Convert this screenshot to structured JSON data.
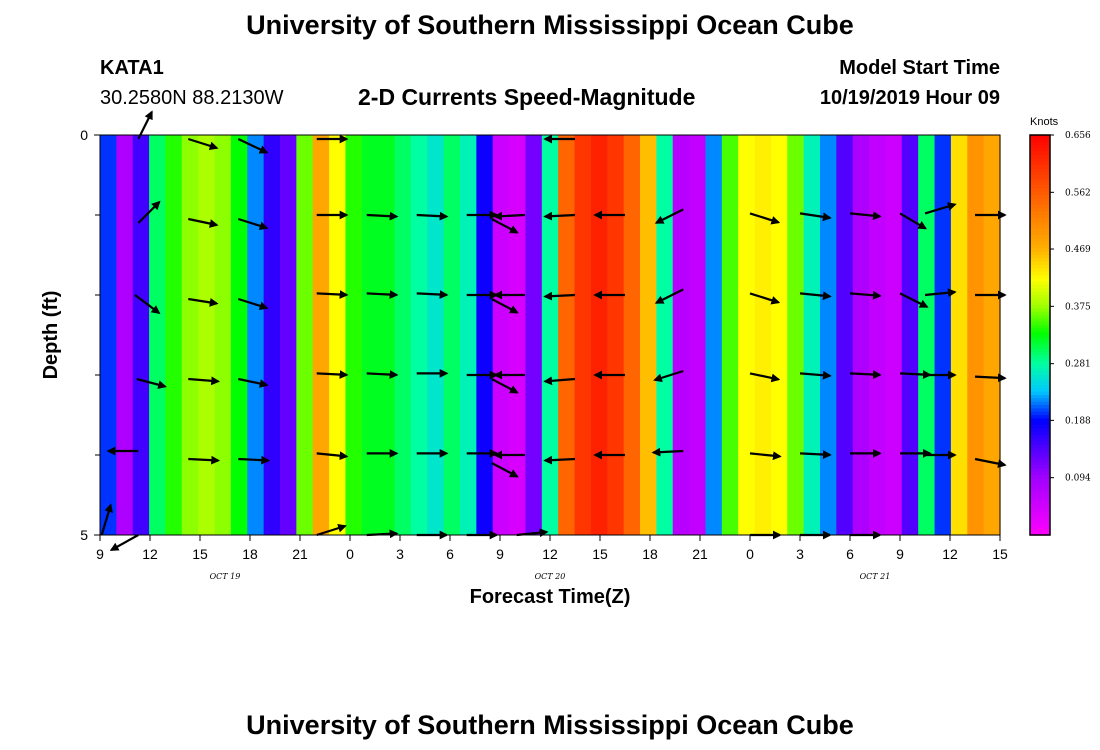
{
  "header": {
    "title": "University of Southern Mississippi Ocean Cube",
    "station": "KATA1",
    "coords": "30.2580N 88.2130W",
    "subtitle": "2-D Currents Speed-Magnitude",
    "model_label": "Model Start Time",
    "model_time": "10/19/2019 Hour 09"
  },
  "footer": {
    "title": "University of Southern Mississippi Ocean Cube"
  },
  "chart_data": {
    "type": "heatmap",
    "xlabel": "Forecast Time(Z)",
    "ylabel": "Depth (ft)",
    "x_range": [
      0,
      54
    ],
    "y_range": [
      0,
      5
    ],
    "x_ticks": [
      {
        "v": 0,
        "label": "9"
      },
      {
        "v": 3,
        "label": "12"
      },
      {
        "v": 6,
        "label": "15"
      },
      {
        "v": 9,
        "label": "18"
      },
      {
        "v": 12,
        "label": "21"
      },
      {
        "v": 15,
        "label": "0"
      },
      {
        "v": 18,
        "label": "3"
      },
      {
        "v": 21,
        "label": "6"
      },
      {
        "v": 24,
        "label": "9"
      },
      {
        "v": 27,
        "label": "12"
      },
      {
        "v": 30,
        "label": "15"
      },
      {
        "v": 33,
        "label": "18"
      },
      {
        "v": 36,
        "label": "21"
      },
      {
        "v": 39,
        "label": "0"
      },
      {
        "v": 42,
        "label": "3"
      },
      {
        "v": 45,
        "label": "6"
      },
      {
        "v": 48,
        "label": "9"
      },
      {
        "v": 51,
        "label": "12"
      },
      {
        "v": 54,
        "label": "15"
      }
    ],
    "date_labels": [
      {
        "v": 7.5,
        "label": "OCT 19"
      },
      {
        "v": 27,
        "label": "OCT 20"
      },
      {
        "v": 46.5,
        "label": "OCT 21"
      }
    ],
    "y_tick_labels": [
      {
        "v": 0,
        "label": "0"
      },
      {
        "v": 5,
        "label": "5"
      }
    ],
    "y_minor_ticks": [
      1,
      2,
      3,
      4
    ],
    "colorbar": {
      "unit": "Knots",
      "min": 0.0,
      "max": 0.656,
      "tick_labels": [
        "0.656",
        "0.562",
        "0.469",
        "0.375",
        "0.281",
        "0.188",
        "0.094"
      ],
      "tick_values": [
        0.656,
        0.562,
        0.469,
        0.375,
        0.281,
        0.188,
        0.094
      ]
    },
    "speed_by_hour": [
      0.2,
      0.08,
      0.15,
      0.3,
      0.34,
      0.37,
      0.38,
      0.37,
      0.33,
      0.22,
      0.16,
      0.13,
      0.36,
      0.48,
      0.42,
      0.34,
      0.32,
      0.32,
      0.3,
      0.28,
      0.26,
      0.3,
      0.27,
      0.18,
      0.05,
      0.04,
      0.12,
      0.28,
      0.55,
      0.6,
      0.62,
      0.6,
      0.55,
      0.46,
      0.28,
      0.07,
      0.06,
      0.22,
      0.35,
      0.42,
      0.43,
      0.42,
      0.36,
      0.27,
      0.22,
      0.14,
      0.08,
      0.06,
      0.05,
      0.14,
      0.3,
      0.2,
      0.44,
      0.5,
      0.48
    ],
    "vectors": [
      {
        "x": 2.3,
        "y": 0.05,
        "u": 0.45,
        "v": -0.9
      },
      {
        "x": 5.3,
        "y": 0.05,
        "u": 0.95,
        "v": 0.3
      },
      {
        "x": 8.3,
        "y": 0.05,
        "u": 0.95,
        "v": 0.45
      },
      {
        "x": 13.0,
        "y": 0.05,
        "u": 1.0,
        "v": 0.0
      },
      {
        "x": 28.5,
        "y": 0.05,
        "u": -1.0,
        "v": 0.0
      },
      {
        "x": 0.1,
        "y": 5.0,
        "u": 0.3,
        "v": -1.0
      },
      {
        "x": 2.3,
        "y": 5.0,
        "u": -0.9,
        "v": 0.5
      },
      {
        "x": 13.0,
        "y": 5.0,
        "u": 0.95,
        "v": -0.3
      },
      {
        "x": 16.0,
        "y": 5.0,
        "u": 1.0,
        "v": -0.05
      },
      {
        "x": 19.0,
        "y": 5.0,
        "u": 1.0,
        "v": 0.0
      },
      {
        "x": 22.0,
        "y": 5.0,
        "u": 1.0,
        "v": 0.0
      },
      {
        "x": 25.0,
        "y": 5.0,
        "u": 1.0,
        "v": -0.1
      },
      {
        "x": 39.0,
        "y": 5.0,
        "u": 1.0,
        "v": 0.0
      },
      {
        "x": 42.0,
        "y": 5.0,
        "u": 1.0,
        "v": 0.0
      },
      {
        "x": 45.0,
        "y": 5.0,
        "u": 1.0,
        "v": 0.0
      },
      {
        "x": 2.3,
        "y": 1.1,
        "u": 0.7,
        "v": -0.7
      },
      {
        "x": 2.1,
        "y": 2.0,
        "u": 0.8,
        "v": 0.6
      },
      {
        "x": 2.2,
        "y": 3.05,
        "u": 0.95,
        "v": 0.25
      },
      {
        "x": 2.3,
        "y": 3.95,
        "u": -1.0,
        "v": 0.0
      },
      {
        "x": 5.3,
        "y": 1.05,
        "u": 0.95,
        "v": 0.2
      },
      {
        "x": 5.3,
        "y": 2.05,
        "u": 0.95,
        "v": 0.15
      },
      {
        "x": 5.3,
        "y": 3.05,
        "u": 1.0,
        "v": 0.08
      },
      {
        "x": 5.3,
        "y": 4.05,
        "u": 1.0,
        "v": 0.05
      },
      {
        "x": 8.3,
        "y": 1.05,
        "u": 0.95,
        "v": 0.3
      },
      {
        "x": 8.3,
        "y": 2.05,
        "u": 0.95,
        "v": 0.3
      },
      {
        "x": 8.3,
        "y": 3.05,
        "u": 0.95,
        "v": 0.2
      },
      {
        "x": 8.3,
        "y": 4.05,
        "u": 1.0,
        "v": 0.05
      },
      {
        "x": 13.0,
        "y": 1.0,
        "u": 1.0,
        "v": 0.0
      },
      {
        "x": 13.0,
        "y": 1.98,
        "u": 1.0,
        "v": 0.05
      },
      {
        "x": 13.0,
        "y": 2.98,
        "u": 1.0,
        "v": 0.05
      },
      {
        "x": 13.0,
        "y": 3.98,
        "u": 1.0,
        "v": 0.1
      },
      {
        "x": 16.0,
        "y": 1.0,
        "u": 1.0,
        "v": 0.05
      },
      {
        "x": 16.0,
        "y": 1.98,
        "u": 1.0,
        "v": 0.05
      },
      {
        "x": 16.0,
        "y": 2.98,
        "u": 1.0,
        "v": 0.05
      },
      {
        "x": 16.0,
        "y": 3.98,
        "u": 1.0,
        "v": 0.0
      },
      {
        "x": 19.0,
        "y": 1.0,
        "u": 1.0,
        "v": 0.05
      },
      {
        "x": 19.0,
        "y": 1.98,
        "u": 1.0,
        "v": 0.05
      },
      {
        "x": 19.0,
        "y": 2.98,
        "u": 1.0,
        "v": 0.0
      },
      {
        "x": 19.0,
        "y": 3.98,
        "u": 1.0,
        "v": 0.0
      },
      {
        "x": 22.0,
        "y": 1.0,
        "u": 1.0,
        "v": 0.0
      },
      {
        "x": 22.0,
        "y": 2.0,
        "u": 1.0,
        "v": 0.0
      },
      {
        "x": 22.0,
        "y": 3.0,
        "u": 1.0,
        "v": 0.0
      },
      {
        "x": 22.0,
        "y": 3.98,
        "u": 1.0,
        "v": 0.0
      },
      {
        "x": 23.5,
        "y": 1.05,
        "u": 0.85,
        "v": 0.45
      },
      {
        "x": 23.5,
        "y": 2.05,
        "u": 0.85,
        "v": 0.45
      },
      {
        "x": 23.5,
        "y": 3.05,
        "u": 0.85,
        "v": 0.45
      },
      {
        "x": 23.5,
        "y": 4.1,
        "u": 0.85,
        "v": 0.45
      },
      {
        "x": 25.5,
        "y": 1.0,
        "u": -1.0,
        "v": 0.05
      },
      {
        "x": 25.5,
        "y": 2.0,
        "u": -1.0,
        "v": 0.0
      },
      {
        "x": 25.5,
        "y": 3.0,
        "u": -1.0,
        "v": 0.0
      },
      {
        "x": 25.5,
        "y": 4.0,
        "u": -1.0,
        "v": 0.0
      },
      {
        "x": 28.5,
        "y": 1.0,
        "u": -1.0,
        "v": 0.05
      },
      {
        "x": 28.5,
        "y": 2.0,
        "u": -1.0,
        "v": 0.05
      },
      {
        "x": 28.5,
        "y": 3.05,
        "u": -1.0,
        "v": 0.08
      },
      {
        "x": 28.5,
        "y": 4.05,
        "u": -1.0,
        "v": 0.05
      },
      {
        "x": 31.5,
        "y": 1.0,
        "u": -1.0,
        "v": 0.0
      },
      {
        "x": 31.5,
        "y": 2.0,
        "u": -1.0,
        "v": 0.0
      },
      {
        "x": 31.5,
        "y": 3.0,
        "u": -1.0,
        "v": 0.0
      },
      {
        "x": 31.5,
        "y": 4.0,
        "u": -1.0,
        "v": 0.0
      },
      {
        "x": 35.0,
        "y": 0.93,
        "u": -0.9,
        "v": 0.45
      },
      {
        "x": 35.0,
        "y": 1.93,
        "u": -0.9,
        "v": 0.45
      },
      {
        "x": 35.0,
        "y": 2.95,
        "u": -0.95,
        "v": 0.3
      },
      {
        "x": 35.0,
        "y": 3.95,
        "u": -1.0,
        "v": 0.05
      },
      {
        "x": 39.0,
        "y": 0.98,
        "u": 0.95,
        "v": 0.3
      },
      {
        "x": 39.0,
        "y": 1.98,
        "u": 0.95,
        "v": 0.3
      },
      {
        "x": 39.0,
        "y": 2.98,
        "u": 0.95,
        "v": 0.2
      },
      {
        "x": 39.0,
        "y": 3.98,
        "u": 1.0,
        "v": 0.1
      },
      {
        "x": 42.0,
        "y": 0.98,
        "u": 1.0,
        "v": 0.15
      },
      {
        "x": 42.0,
        "y": 1.98,
        "u": 1.0,
        "v": 0.1
      },
      {
        "x": 42.0,
        "y": 2.98,
        "u": 1.0,
        "v": 0.08
      },
      {
        "x": 42.0,
        "y": 3.98,
        "u": 1.0,
        "v": 0.05
      },
      {
        "x": 45.0,
        "y": 0.98,
        "u": 1.0,
        "v": 0.1
      },
      {
        "x": 45.0,
        "y": 1.98,
        "u": 1.0,
        "v": 0.08
      },
      {
        "x": 45.0,
        "y": 2.98,
        "u": 1.0,
        "v": 0.05
      },
      {
        "x": 45.0,
        "y": 3.98,
        "u": 1.0,
        "v": 0.0
      },
      {
        "x": 48.0,
        "y": 0.98,
        "u": 0.85,
        "v": 0.5
      },
      {
        "x": 48.0,
        "y": 1.98,
        "u": 0.9,
        "v": 0.45
      },
      {
        "x": 48.0,
        "y": 2.98,
        "u": 1.0,
        "v": 0.05
      },
      {
        "x": 48.0,
        "y": 3.98,
        "u": 1.0,
        "v": 0.0
      },
      {
        "x": 49.5,
        "y": 0.98,
        "u": 1.0,
        "v": -0.3
      },
      {
        "x": 49.5,
        "y": 2.0,
        "u": 1.0,
        "v": -0.1
      },
      {
        "x": 49.5,
        "y": 3.0,
        "u": 1.0,
        "v": 0.0
      },
      {
        "x": 49.5,
        "y": 4.0,
        "u": 1.0,
        "v": 0.0
      },
      {
        "x": 52.5,
        "y": 1.0,
        "u": 1.0,
        "v": 0.0
      },
      {
        "x": 52.5,
        "y": 2.0,
        "u": 1.0,
        "v": 0.0
      },
      {
        "x": 52.5,
        "y": 3.02,
        "u": 1.0,
        "v": 0.05
      },
      {
        "x": 52.5,
        "y": 4.05,
        "u": 1.0,
        "v": 0.2
      }
    ]
  }
}
